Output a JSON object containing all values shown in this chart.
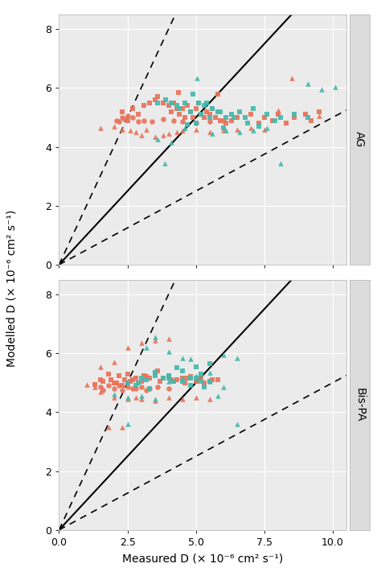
{
  "xlabel": "Measured D (× 10⁻⁶ cm² s⁻¹)",
  "ylabel": "Modelled D (× 10⁻⁶ cm² s⁻¹)",
  "xlim": [
    0.0,
    10.5
  ],
  "ylim": [
    0.0,
    8.5
  ],
  "xticks": [
    0.0,
    2.5,
    5.0,
    7.5,
    10.0
  ],
  "yticks": [
    0,
    2,
    4,
    6,
    8
  ],
  "color_salmon": "#E8735A",
  "color_teal": "#45B8AC",
  "panel_labels": [
    "AG",
    "Bis-PA"
  ],
  "background_color": "#EBEBEB",
  "grid_color": "#FFFFFF",
  "panel_strip_color": "#DCDCDC",
  "ag_salmon_squares": [
    [
      2.3,
      5.2
    ],
    [
      2.5,
      4.9
    ],
    [
      2.7,
      5.3
    ],
    [
      2.9,
      5.1
    ],
    [
      3.1,
      5.4
    ],
    [
      3.3,
      5.5
    ],
    [
      3.5,
      5.6
    ],
    [
      3.6,
      5.7
    ],
    [
      3.8,
      5.5
    ],
    [
      4.0,
      5.4
    ],
    [
      4.1,
      5.2
    ],
    [
      4.2,
      5.5
    ],
    [
      4.3,
      5.3
    ],
    [
      4.4,
      5.1
    ],
    [
      4.5,
      5.3
    ],
    [
      4.6,
      5.0
    ],
    [
      4.7,
      5.4
    ],
    [
      4.8,
      5.2
    ],
    [
      4.9,
      5.0
    ],
    [
      5.0,
      5.3
    ],
    [
      5.1,
      5.5
    ],
    [
      5.2,
      5.1
    ],
    [
      5.3,
      5.0
    ],
    [
      5.4,
      5.2
    ],
    [
      5.5,
      5.1
    ],
    [
      5.6,
      5.3
    ],
    [
      5.7,
      5.0
    ],
    [
      5.9,
      4.9
    ],
    [
      6.1,
      4.8
    ],
    [
      6.3,
      4.9
    ],
    [
      6.5,
      5.0
    ],
    [
      7.0,
      5.1
    ],
    [
      7.3,
      4.8
    ],
    [
      7.5,
      5.0
    ],
    [
      7.8,
      4.9
    ],
    [
      8.0,
      5.1
    ],
    [
      8.3,
      4.8
    ],
    [
      8.6,
      5.0
    ],
    [
      9.0,
      5.1
    ],
    [
      9.2,
      4.9
    ],
    [
      9.5,
      5.2
    ],
    [
      5.8,
      5.8
    ],
    [
      4.35,
      5.85
    ]
  ],
  "ag_salmon_circles": [
    [
      2.1,
      4.9
    ],
    [
      2.2,
      4.85
    ],
    [
      2.3,
      5.0
    ],
    [
      2.4,
      4.95
    ],
    [
      2.5,
      5.05
    ],
    [
      2.7,
      5.0
    ],
    [
      2.9,
      4.85
    ],
    [
      3.1,
      4.9
    ],
    [
      3.4,
      4.85
    ],
    [
      3.8,
      4.95
    ],
    [
      4.2,
      4.9
    ],
    [
      4.5,
      4.85
    ],
    [
      5.0,
      4.8
    ],
    [
      5.5,
      4.85
    ],
    [
      6.0,
      4.9
    ]
  ],
  "ag_salmon_triangles": [
    [
      1.5,
      4.65
    ],
    [
      2.0,
      4.7
    ],
    [
      2.3,
      4.6
    ],
    [
      2.6,
      4.55
    ],
    [
      2.8,
      4.5
    ],
    [
      3.0,
      4.4
    ],
    [
      3.2,
      4.6
    ],
    [
      3.5,
      4.35
    ],
    [
      3.8,
      4.4
    ],
    [
      4.0,
      4.45
    ],
    [
      4.3,
      4.5
    ],
    [
      4.5,
      4.55
    ],
    [
      5.0,
      4.6
    ],
    [
      5.5,
      4.5
    ],
    [
      6.0,
      4.55
    ],
    [
      6.5,
      4.6
    ],
    [
      7.0,
      4.65
    ],
    [
      7.5,
      4.6
    ],
    [
      8.0,
      5.25
    ],
    [
      8.5,
      6.35
    ],
    [
      9.0,
      5.15
    ],
    [
      9.5,
      5.05
    ]
  ],
  "ag_teal_squares": [
    [
      3.6,
      5.5
    ],
    [
      3.9,
      5.6
    ],
    [
      4.1,
      5.5
    ],
    [
      4.3,
      5.4
    ],
    [
      4.6,
      5.5
    ],
    [
      4.9,
      5.8
    ],
    [
      5.1,
      5.5
    ],
    [
      5.3,
      5.4
    ],
    [
      5.6,
      5.3
    ],
    [
      5.8,
      5.2
    ],
    [
      6.1,
      5.0
    ],
    [
      6.3,
      5.1
    ],
    [
      6.6,
      5.2
    ],
    [
      7.1,
      5.3
    ],
    [
      7.6,
      5.1
    ],
    [
      8.1,
      5.0
    ],
    [
      8.6,
      5.1
    ],
    [
      9.1,
      5.0
    ],
    [
      4.4,
      5.3
    ],
    [
      4.8,
      5.2
    ],
    [
      5.4,
      5.5
    ],
    [
      5.9,
      5.2
    ],
    [
      6.4,
      5.0
    ],
    [
      4.7,
      4.75
    ],
    [
      5.2,
      5.1
    ],
    [
      5.5,
      5.0
    ],
    [
      6.9,
      4.8
    ],
    [
      7.3,
      4.7
    ],
    [
      7.9,
      4.9
    ],
    [
      5.0,
      4.8
    ],
    [
      6.0,
      4.65
    ],
    [
      6.8,
      5.0
    ]
  ],
  "ag_teal_triangles": [
    [
      3.6,
      4.25
    ],
    [
      4.1,
      4.15
    ],
    [
      3.85,
      3.45
    ],
    [
      4.6,
      4.65
    ],
    [
      5.05,
      6.35
    ],
    [
      5.6,
      4.45
    ],
    [
      6.1,
      4.55
    ],
    [
      6.6,
      4.5
    ],
    [
      7.1,
      4.55
    ],
    [
      7.6,
      4.65
    ],
    [
      8.1,
      3.45
    ],
    [
      9.1,
      6.15
    ],
    [
      9.6,
      5.95
    ],
    [
      10.1,
      6.05
    ]
  ],
  "bispa_salmon_squares": [
    [
      1.5,
      5.1
    ],
    [
      1.8,
      5.3
    ],
    [
      2.0,
      5.0
    ],
    [
      2.2,
      5.25
    ],
    [
      2.5,
      5.3
    ],
    [
      2.8,
      5.15
    ],
    [
      3.0,
      5.05
    ],
    [
      3.2,
      5.2
    ],
    [
      3.5,
      5.35
    ],
    [
      3.8,
      5.15
    ],
    [
      4.0,
      5.25
    ],
    [
      4.2,
      5.05
    ],
    [
      4.5,
      5.15
    ],
    [
      4.8,
      5.2
    ],
    [
      5.0,
      5.05
    ],
    [
      5.2,
      5.15
    ],
    [
      5.5,
      5.05
    ],
    [
      5.8,
      5.1
    ],
    [
      2.3,
      4.9
    ],
    [
      2.7,
      5.1
    ],
    [
      3.3,
      5.15
    ],
    [
      3.7,
      5.05
    ],
    [
      4.3,
      5.1
    ],
    [
      4.7,
      5.15
    ],
    [
      1.3,
      4.95
    ],
    [
      1.6,
      5.05
    ],
    [
      1.9,
      5.1
    ],
    [
      2.1,
      5.0
    ],
    [
      2.4,
      5.1
    ],
    [
      2.6,
      5.05
    ],
    [
      3.1,
      5.25
    ],
    [
      3.6,
      5.4
    ],
    [
      4.1,
      5.1
    ],
    [
      4.6,
      5.0
    ],
    [
      5.3,
      5.0
    ],
    [
      5.6,
      5.1
    ]
  ],
  "bispa_salmon_circles": [
    [
      1.5,
      4.85
    ],
    [
      1.8,
      4.9
    ],
    [
      2.0,
      4.8
    ],
    [
      2.2,
      4.9
    ],
    [
      2.5,
      4.85
    ],
    [
      2.8,
      4.8
    ],
    [
      3.0,
      4.85
    ],
    [
      3.3,
      4.8
    ],
    [
      3.6,
      4.85
    ],
    [
      4.0,
      4.8
    ],
    [
      1.6,
      4.75
    ],
    [
      2.3,
      4.75
    ],
    [
      2.7,
      4.8
    ],
    [
      3.2,
      4.75
    ]
  ],
  "bispa_salmon_triangles": [
    [
      1.0,
      4.95
    ],
    [
      1.3,
      4.85
    ],
    [
      1.5,
      4.7
    ],
    [
      2.0,
      4.5
    ],
    [
      2.5,
      4.45
    ],
    [
      2.8,
      4.5
    ],
    [
      3.0,
      4.45
    ],
    [
      3.5,
      4.4
    ],
    [
      4.0,
      4.5
    ],
    [
      4.5,
      4.45
    ],
    [
      5.0,
      4.5
    ],
    [
      5.5,
      4.45
    ],
    [
      1.8,
      3.5
    ],
    [
      2.3,
      3.5
    ],
    [
      2.5,
      6.2
    ],
    [
      3.0,
      6.35
    ],
    [
      3.5,
      6.45
    ],
    [
      4.0,
      6.5
    ],
    [
      1.5,
      5.55
    ],
    [
      2.0,
      5.7
    ]
  ],
  "bispa_teal_squares": [
    [
      2.5,
      5.0
    ],
    [
      3.0,
      5.15
    ],
    [
      3.5,
      5.25
    ],
    [
      4.0,
      5.15
    ],
    [
      4.5,
      5.05
    ],
    [
      5.0,
      5.15
    ],
    [
      5.5,
      5.05
    ],
    [
      2.8,
      4.9
    ],
    [
      3.2,
      5.1
    ],
    [
      3.8,
      5.15
    ],
    [
      4.2,
      5.05
    ],
    [
      4.8,
      5.15
    ],
    [
      5.2,
      5.05
    ],
    [
      3.5,
      5.35
    ],
    [
      4.0,
      5.25
    ],
    [
      5.0,
      5.55
    ],
    [
      5.5,
      5.65
    ],
    [
      4.5,
      5.4
    ],
    [
      5.2,
      5.3
    ],
    [
      4.8,
      4.9
    ],
    [
      3.3,
      4.8
    ],
    [
      2.9,
      5.0
    ],
    [
      4.3,
      5.5
    ],
    [
      5.3,
      4.85
    ]
  ],
  "bispa_teal_triangles": [
    [
      2.0,
      4.6
    ],
    [
      2.5,
      4.5
    ],
    [
      3.0,
      4.55
    ],
    [
      3.5,
      4.45
    ],
    [
      4.0,
      5.05
    ],
    [
      4.5,
      5.15
    ],
    [
      5.0,
      5.25
    ],
    [
      5.5,
      5.35
    ],
    [
      6.0,
      5.95
    ],
    [
      6.5,
      5.85
    ],
    [
      2.5,
      3.6
    ],
    [
      6.5,
      3.6
    ],
    [
      3.5,
      6.55
    ],
    [
      4.0,
      6.05
    ],
    [
      4.5,
      5.85
    ],
    [
      5.5,
      5.05
    ],
    [
      6.0,
      4.85
    ],
    [
      3.2,
      6.2
    ],
    [
      4.8,
      5.8
    ],
    [
      5.8,
      4.55
    ]
  ]
}
